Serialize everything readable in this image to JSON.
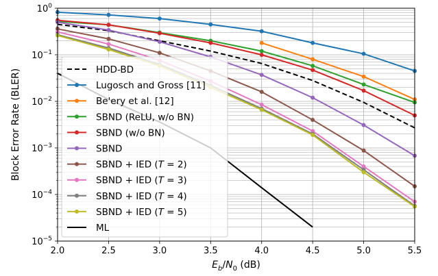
{
  "chart_data": {
    "type": "line",
    "xlabel": "E_b/N_0 (dB)",
    "xlabel_parts": {
      "e": "E",
      "e_sub": "b",
      "slash": "/",
      "n": "N",
      "n_sub": "0",
      "unit": " (dB)"
    },
    "ylabel": "Block Error Rate (BLER)",
    "xlim": [
      2.0,
      5.5
    ],
    "ylim": [
      1e-05,
      1
    ],
    "yscale": "log",
    "grid": true,
    "legend_position": "lower-left",
    "xticks": [
      "2.0",
      "2.5",
      "3.0",
      "3.5",
      "4.0",
      "4.5",
      "5.0",
      "5.5"
    ],
    "yticks": [
      {
        "base": "10",
        "exp": "0"
      },
      {
        "base": "10",
        "exp": "−1"
      },
      {
        "base": "10",
        "exp": "−2"
      },
      {
        "base": "10",
        "exp": "−3"
      },
      {
        "base": "10",
        "exp": "−4"
      },
      {
        "base": "10",
        "exp": "−5"
      }
    ],
    "series": [
      {
        "name": "HDD-BD",
        "color": "#000000",
        "dash": true,
        "marker": false,
        "x": [
          2.0,
          2.5,
          3.0,
          3.5,
          4.0,
          4.5,
          5.0,
          5.5
        ],
        "y": [
          0.45,
          0.33,
          0.2,
          0.12,
          0.065,
          0.028,
          0.0095,
          0.0027
        ]
      },
      {
        "name": "Lugosch and Gross [11]",
        "color": "#1f77b4",
        "dash": false,
        "marker": true,
        "x": [
          2.0,
          2.5,
          3.0,
          3.5,
          4.0,
          4.5,
          5.0,
          5.5
        ],
        "y": [
          0.82,
          0.72,
          0.6,
          0.45,
          0.32,
          0.18,
          0.105,
          0.045
        ]
      },
      {
        "name": "Be'ery et al. [12]",
        "color": "#ff7f0e",
        "dash": false,
        "marker": true,
        "x": [
          4.0,
          4.5,
          5.0,
          5.5
        ],
        "y": [
          0.18,
          0.08,
          0.034,
          0.011
        ]
      },
      {
        "name": "SBND (ReLU, w/o BN)",
        "color": "#2ca02c",
        "dash": false,
        "marker": true,
        "x": [
          2.0,
          2.5,
          3.0,
          3.5,
          4.0,
          4.5,
          5.0,
          5.5
        ],
        "y": [
          0.52,
          0.44,
          0.3,
          0.2,
          0.12,
          0.058,
          0.023,
          0.0095
        ]
      },
      {
        "name": "SBND (w/o BN)",
        "color": "#d62728",
        "dash": false,
        "marker": true,
        "x": [
          2.0,
          2.5,
          3.0,
          3.5,
          4.0,
          4.5,
          5.0,
          5.5
        ],
        "y": [
          0.55,
          0.44,
          0.29,
          0.18,
          0.1,
          0.047,
          0.017,
          0.005
        ]
      },
      {
        "name": "SBND",
        "color": "#9467bd",
        "dash": false,
        "marker": true,
        "x": [
          2.0,
          2.5,
          3.0,
          3.5,
          4.0,
          4.5,
          5.0,
          5.5
        ],
        "y": [
          0.5,
          0.34,
          0.19,
          0.09,
          0.037,
          0.012,
          0.0031,
          0.00068
        ]
      },
      {
        "name": "SBND + IED (T = 2)",
        "label_main": "SBND + IED (",
        "label_var": "T",
        "label_rest": " = 2)",
        "color": "#8c564b",
        "dash": false,
        "marker": true,
        "x": [
          2.0,
          2.5,
          3.0,
          3.5,
          4.0,
          4.5,
          5.0,
          5.5
        ],
        "y": [
          0.36,
          0.22,
          0.11,
          0.045,
          0.016,
          0.004,
          0.00088,
          0.00015
        ]
      },
      {
        "name": "SBND + IED (T = 3)",
        "label_main": "SBND + IED (",
        "label_var": "T",
        "label_rest": " = 3)",
        "color": "#e377c2",
        "dash": false,
        "marker": true,
        "x": [
          2.0,
          2.5,
          3.0,
          3.5,
          4.0,
          4.5,
          5.0,
          5.5
        ],
        "y": [
          0.31,
          0.17,
          0.076,
          0.027,
          0.0085,
          0.0023,
          0.0004,
          7e-05
        ]
      },
      {
        "name": "SBND + IED (T = 4)",
        "label_main": "SBND + IED (",
        "label_var": "T",
        "label_rest": " = 4)",
        "color": "#7f7f7f",
        "dash": false,
        "marker": true,
        "x": [
          2.0,
          2.5,
          3.0,
          3.5,
          4.0,
          4.5,
          5.0,
          5.5
        ],
        "y": [
          0.27,
          0.14,
          0.062,
          0.022,
          0.007,
          0.002,
          0.00034,
          5.7e-05
        ]
      },
      {
        "name": "SBND + IED (T = 5)",
        "label_main": "SBND + IED (",
        "label_var": "T",
        "label_rest": " = 5)",
        "color": "#bcbd22",
        "dash": false,
        "marker": true,
        "x": [
          2.0,
          2.5,
          3.0,
          3.5,
          4.0,
          4.5,
          5.0,
          5.5
        ],
        "y": [
          0.26,
          0.13,
          0.058,
          0.02,
          0.0066,
          0.0019,
          0.0003,
          5.5e-05
        ]
      },
      {
        "name": "ML",
        "color": "#000000",
        "dash": false,
        "marker": false,
        "x": [
          2.0,
          2.5,
          3.0,
          3.5,
          4.0,
          4.5
        ],
        "y": [
          0.04,
          0.011,
          0.0036,
          0.001,
          0.00014,
          2e-05
        ]
      }
    ]
  }
}
